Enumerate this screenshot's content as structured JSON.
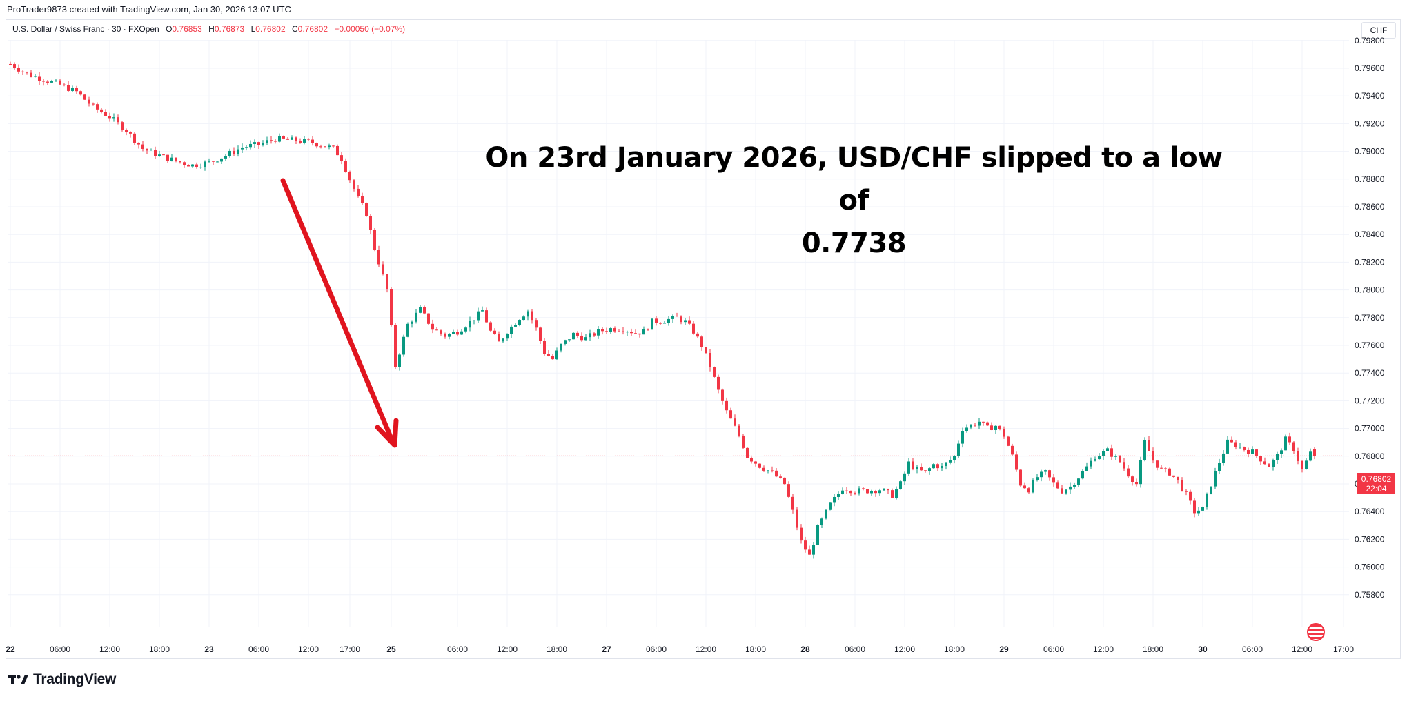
{
  "header": {
    "credit": "ProTrader9873 created with TradingView.com, Jan 30, 2026 13:07 UTC"
  },
  "legend": {
    "symbol": "U.S. Dollar / Swiss Franc · 30 · FXOpen",
    "o_label": "O",
    "o_value": "0.76853",
    "h_label": "H",
    "h_value": "0.76873",
    "l_label": "L",
    "l_value": "0.76802",
    "c_label": "C",
    "c_value": "0.76802",
    "change": "−0.00050 (−0.07%)"
  },
  "currency_button": "CHF",
  "annotation": {
    "line1": "On 23rd January 2026, USD/CHF slipped to a low of",
    "line2": "0.7738"
  },
  "price_tag": {
    "price": "0.76802",
    "countdown": "22:04"
  },
  "brand": {
    "name": "TradingView"
  },
  "colors": {
    "up": "#089981",
    "down": "#f23645",
    "arrow": "#e0141e",
    "grid": "#f0f3fa"
  },
  "chart_data": {
    "type": "candlestick",
    "title": "U.S. Dollar / Swiss Franc · 30 · FXOpen",
    "ylim": [
      0.757,
      0.8
    ],
    "y_ticks": [
      "0.79800",
      "0.79600",
      "0.79400",
      "0.79200",
      "0.79000",
      "0.78800",
      "0.78600",
      "0.78400",
      "0.78200",
      "0.78000",
      "0.77800",
      "0.77600",
      "0.77400",
      "0.77200",
      "0.77000",
      "0.76800",
      "0.76600",
      "0.76400",
      "0.76200",
      "0.76000",
      "0.75800"
    ],
    "x_ticks": [
      {
        "label": "22",
        "bold": true,
        "t": 0
      },
      {
        "label": "06:00",
        "t": 12
      },
      {
        "label": "12:00",
        "t": 24
      },
      {
        "label": "18:00",
        "t": 36
      },
      {
        "label": "23",
        "bold": true,
        "t": 48
      },
      {
        "label": "06:00",
        "t": 60
      },
      {
        "label": "12:00",
        "t": 72
      },
      {
        "label": "17:00",
        "t": 82
      },
      {
        "label": "25",
        "bold": true,
        "t": 92
      },
      {
        "label": "06:00",
        "t": 108
      },
      {
        "label": "12:00",
        "t": 120
      },
      {
        "label": "18:00",
        "t": 132
      },
      {
        "label": "27",
        "bold": true,
        "t": 144
      },
      {
        "label": "06:00",
        "t": 156
      },
      {
        "label": "12:00",
        "t": 168
      },
      {
        "label": "18:00",
        "t": 180
      },
      {
        "label": "28",
        "bold": true,
        "t": 192
      },
      {
        "label": "06:00",
        "t": 204
      },
      {
        "label": "12:00",
        "t": 216
      },
      {
        "label": "18:00",
        "t": 228
      },
      {
        "label": "29",
        "bold": true,
        "t": 240
      },
      {
        "label": "06:00",
        "t": 252
      },
      {
        "label": "12:00",
        "t": 264
      },
      {
        "label": "18:00",
        "t": 276
      },
      {
        "label": "30",
        "bold": true,
        "t": 288
      },
      {
        "label": "06:00",
        "t": 300
      },
      {
        "label": "12:00",
        "t": 312
      },
      {
        "label": "17:00",
        "t": 322
      }
    ],
    "last_price": 0.76802,
    "close_path": [
      [
        0,
        0.7963
      ],
      [
        4,
        0.7956
      ],
      [
        8,
        0.7952
      ],
      [
        12,
        0.7948
      ],
      [
        16,
        0.7943
      ],
      [
        20,
        0.7932
      ],
      [
        24,
        0.7925
      ],
      [
        28,
        0.7915
      ],
      [
        32,
        0.7902
      ],
      [
        36,
        0.7897
      ],
      [
        40,
        0.7893
      ],
      [
        44,
        0.789
      ],
      [
        48,
        0.7892
      ],
      [
        52,
        0.7897
      ],
      [
        56,
        0.7903
      ],
      [
        60,
        0.7905
      ],
      [
        64,
        0.7909
      ],
      [
        68,
        0.7908
      ],
      [
        72,
        0.7907
      ],
      [
        76,
        0.7904
      ],
      [
        78,
        0.7902
      ],
      [
        80,
        0.7895
      ],
      [
        82,
        0.788
      ],
      [
        84,
        0.7866
      ],
      [
        86,
        0.7855
      ],
      [
        88,
        0.783
      ],
      [
        90,
        0.781
      ],
      [
        91,
        0.78
      ],
      [
        93,
        0.7745
      ],
      [
        96,
        0.7775
      ],
      [
        99,
        0.7786
      ],
      [
        102,
        0.7772
      ],
      [
        105,
        0.7767
      ],
      [
        108,
        0.777
      ],
      [
        111,
        0.7777
      ],
      [
        114,
        0.7785
      ],
      [
        116,
        0.777
      ],
      [
        118,
        0.7762
      ],
      [
        120,
        0.777
      ],
      [
        123,
        0.778
      ],
      [
        125,
        0.7785
      ],
      [
        127,
        0.7772
      ],
      [
        129,
        0.7755
      ],
      [
        131,
        0.775
      ],
      [
        133,
        0.776
      ],
      [
        136,
        0.7768
      ],
      [
        139,
        0.7765
      ],
      [
        142,
        0.777
      ],
      [
        145,
        0.7772
      ],
      [
        148,
        0.7772
      ],
      [
        151,
        0.7769
      ],
      [
        153,
        0.777
      ],
      [
        155,
        0.7777
      ],
      [
        158,
        0.7778
      ],
      [
        161,
        0.778
      ],
      [
        163,
        0.7777
      ],
      [
        165,
        0.777
      ],
      [
        167,
        0.776
      ],
      [
        169,
        0.7745
      ],
      [
        171,
        0.7727
      ],
      [
        173,
        0.7712
      ],
      [
        176,
        0.7695
      ],
      [
        178,
        0.768
      ],
      [
        181,
        0.7673
      ],
      [
        184,
        0.7668
      ],
      [
        187,
        0.766
      ],
      [
        189,
        0.764
      ],
      [
        191,
        0.7618
      ],
      [
        193,
        0.7608
      ],
      [
        195,
        0.7628
      ],
      [
        198,
        0.7645
      ],
      [
        201,
        0.7657
      ],
      [
        204,
        0.7655
      ],
      [
        207,
        0.7655
      ],
      [
        210,
        0.7656
      ],
      [
        213,
        0.7652
      ],
      [
        215,
        0.766
      ],
      [
        217,
        0.7675
      ],
      [
        219,
        0.767
      ],
      [
        221,
        0.7668
      ],
      [
        223,
        0.7674
      ],
      [
        225,
        0.7672
      ],
      [
        228,
        0.768
      ],
      [
        230,
        0.77
      ],
      [
        232,
        0.7702
      ],
      [
        234,
        0.7705
      ],
      [
        236,
        0.77
      ],
      [
        238,
        0.7702
      ],
      [
        240,
        0.7695
      ],
      [
        242,
        0.768
      ],
      [
        244,
        0.766
      ],
      [
        246,
        0.7656
      ],
      [
        248,
        0.7665
      ],
      [
        250,
        0.7668
      ],
      [
        252,
        0.766
      ],
      [
        254,
        0.7655
      ],
      [
        256,
        0.7658
      ],
      [
        258,
        0.7665
      ],
      [
        260,
        0.7672
      ],
      [
        262,
        0.768
      ],
      [
        265,
        0.7684
      ],
      [
        268,
        0.7676
      ],
      [
        270,
        0.7667
      ],
      [
        272,
        0.766
      ],
      [
        274,
        0.769
      ],
      [
        276,
        0.7677
      ],
      [
        278,
        0.767
      ],
      [
        280,
        0.7668
      ],
      [
        282,
        0.7662
      ],
      [
        284,
        0.7652
      ],
      [
        286,
        0.764
      ],
      [
        288,
        0.7642
      ],
      [
        290,
        0.766
      ],
      [
        292,
        0.7676
      ],
      [
        294,
        0.769
      ],
      [
        296,
        0.7688
      ],
      [
        298,
        0.7685
      ],
      [
        300,
        0.7683
      ],
      [
        302,
        0.7678
      ],
      [
        304,
        0.7673
      ],
      [
        306,
        0.768
      ],
      [
        308,
        0.7692
      ],
      [
        310,
        0.7685
      ],
      [
        312,
        0.767
      ],
      [
        314,
        0.7682
      ],
      [
        315,
        0.76802
      ]
    ]
  }
}
